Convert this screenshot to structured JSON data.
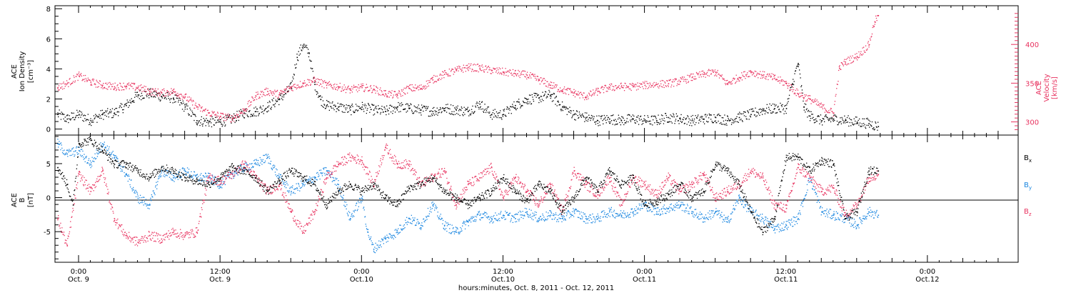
{
  "figure": {
    "xaxis_title": "hours:minutes, Oct. 8, 2011 - Oct. 12, 2011",
    "x_ticks": [
      {
        "hour": 24,
        "time": "0:00",
        "date": "Oct. 9"
      },
      {
        "hour": 36,
        "time": "12:00",
        "date": "Oct. 9"
      },
      {
        "hour": 48,
        "time": "0:00",
        "date": "Oct.10"
      },
      {
        "hour": 60,
        "time": "12:00",
        "date": "Oct.10"
      },
      {
        "hour": 72,
        "time": "0:00",
        "date": "Oct.11"
      },
      {
        "hour": 84,
        "time": "12:00",
        "date": "Oct.11"
      },
      {
        "hour": 96,
        "time": "0:00",
        "date": "Oct.12"
      }
    ],
    "x_range_hours_since_oct8": [
      22.0,
      103.7
    ]
  },
  "chart_data": [
    {
      "type": "scatter",
      "panel": "top",
      "ylabel_left": "ACE\nIon Density\n[cm⁻³]",
      "ylabel_right": "ACE\nVelocity\n[km/s]",
      "ylim_left": [
        -0.4,
        8.2
      ],
      "ylim_right": [
        283,
        450
      ],
      "left_ticks": [
        "0",
        "2",
        "4",
        "6",
        "8"
      ],
      "right_ticks": [
        "300",
        "350",
        "400"
      ],
      "colors": {
        "density": "#000000",
        "velocity": "#e8325f"
      },
      "series": [
        {
          "name": "Ion Density",
          "axis": "left",
          "x": [
            22.2,
            23.0,
            24.0,
            25.0,
            26.0,
            27.0,
            28.0,
            29.0,
            30.0,
            31.0,
            32.0,
            33.0,
            34.0,
            35.0,
            36.0,
            37.0,
            38.0,
            39.0,
            40.0,
            41.0,
            42.0,
            42.5,
            43.0,
            43.5,
            44.0,
            44.5,
            45.0,
            46.0,
            47.0,
            48.0,
            49.0,
            50.0,
            51.0,
            52.0,
            53.0,
            54.0,
            55.0,
            56.0,
            57.0,
            58.0,
            59.0,
            60.0,
            61.0,
            62.0,
            63.0,
            64.0,
            65.0,
            66.0,
            67.0,
            68.0,
            69.0,
            70.0,
            71.0,
            72.0,
            73.0,
            74.0,
            75.0,
            76.0,
            77.0,
            78.0,
            79.0,
            80.0,
            81.0,
            82.0,
            83.0,
            84.0,
            84.5,
            85.0,
            85.5,
            86.0,
            87.0,
            88.0,
            89.0,
            90.0,
            91.0,
            91.8
          ],
          "values": [
            1.0,
            0.7,
            1.0,
            0.6,
            1.0,
            1.1,
            1.6,
            2.3,
            2.4,
            2.2,
            2.1,
            1.5,
            0.6,
            0.5,
            0.5,
            0.7,
            1.1,
            1.2,
            1.5,
            2.0,
            2.8,
            4.8,
            5.6,
            5.1,
            3.0,
            2.0,
            1.6,
            1.5,
            1.3,
            1.5,
            1.3,
            1.2,
            1.5,
            1.4,
            1.3,
            1.2,
            1.4,
            1.3,
            1.2,
            1.7,
            1.0,
            1.0,
            1.6,
            2.0,
            2.1,
            2.3,
            1.5,
            1.0,
            0.8,
            0.6,
            0.7,
            0.6,
            0.7,
            0.6,
            0.6,
            0.8,
            0.7,
            0.6,
            0.7,
            0.8,
            0.6,
            0.8,
            1.0,
            1.3,
            1.4,
            1.4,
            3.0,
            4.4,
            1.5,
            0.9,
            0.6,
            0.7,
            0.6,
            0.5,
            0.4,
            0.2
          ]
        },
        {
          "name": "Velocity",
          "axis": "right",
          "x": [
            22.2,
            23.0,
            24.0,
            25.0,
            26.0,
            27.0,
            28.0,
            29.0,
            30.0,
            31.0,
            32.0,
            33.0,
            34.0,
            35.0,
            36.0,
            37.0,
            38.0,
            39.0,
            40.0,
            41.0,
            42.0,
            43.0,
            44.0,
            45.0,
            46.0,
            47.0,
            48.0,
            49.0,
            50.0,
            51.0,
            52.0,
            53.0,
            54.0,
            55.0,
            56.0,
            57.0,
            58.0,
            59.0,
            60.0,
            61.0,
            62.0,
            63.0,
            64.0,
            65.0,
            66.0,
            67.0,
            68.0,
            69.0,
            70.0,
            71.0,
            72.0,
            73.0,
            74.0,
            75.0,
            76.0,
            77.0,
            78.0,
            79.0,
            80.0,
            81.0,
            82.0,
            83.0,
            84.0,
            85.0,
            86.0,
            87.0,
            88.0,
            88.5,
            89.0,
            90.0,
            91.0,
            91.5,
            91.8
          ],
          "values": [
            345,
            350,
            360,
            352,
            348,
            346,
            347,
            345,
            340,
            338,
            340,
            333,
            320,
            312,
            308,
            305,
            315,
            334,
            340,
            336,
            345,
            350,
            354,
            348,
            346,
            342,
            345,
            343,
            337,
            335,
            344,
            344,
            355,
            362,
            367,
            371,
            370,
            367,
            365,
            363,
            361,
            355,
            348,
            342,
            338,
            333,
            340,
            345,
            346,
            346,
            348,
            349,
            350,
            353,
            358,
            362,
            365,
            350,
            358,
            365,
            361,
            357,
            350,
            337,
            330,
            320,
            312,
            370,
            378,
            385,
            400,
            430,
            438
          ]
        }
      ]
    },
    {
      "type": "scatter",
      "panel": "bottom",
      "ylabel_left": "ACE\nB\n[nT]",
      "ylim": [
        -9.5,
        9.2
      ],
      "left_ticks": [
        "-5",
        "0",
        "5"
      ],
      "zero_line": true,
      "colors": {
        "Bx": "#000000",
        "By": "#1a86e0",
        "Bz": "#e8325f"
      },
      "series": [
        {
          "name": "Bx",
          "x": [
            22.2,
            23.0,
            23.5,
            24.0,
            25.0,
            26.0,
            27.0,
            28.0,
            29.0,
            30.0,
            31.0,
            32.0,
            33.0,
            34.0,
            35.0,
            36.0,
            37.0,
            38.0,
            39.0,
            40.0,
            41.0,
            42.0,
            43.0,
            44.0,
            45.0,
            46.0,
            47.0,
            48.0,
            49.0,
            50.0,
            51.0,
            52.0,
            53.0,
            54.0,
            55.0,
            56.0,
            57.0,
            58.0,
            59.0,
            60.0,
            61.0,
            62.0,
            63.0,
            64.0,
            65.0,
            66.0,
            67.0,
            68.0,
            69.0,
            70.0,
            71.0,
            72.0,
            73.0,
            74.0,
            75.0,
            76.0,
            77.0,
            78.0,
            79.0,
            80.0,
            81.0,
            82.0,
            83.0,
            84.0,
            85.0,
            86.0,
            87.0,
            88.0,
            89.0,
            90.0,
            91.0,
            91.8
          ],
          "values": [
            4.5,
            2.0,
            -1.0,
            8.0,
            8.5,
            7.0,
            5.0,
            5.0,
            4.0,
            3.0,
            4.5,
            4.0,
            3.0,
            2.5,
            2.0,
            3.0,
            4.5,
            4.0,
            3.0,
            1.0,
            2.5,
            4.0,
            3.0,
            2.0,
            -1.0,
            1.0,
            2.0,
            1.0,
            2.0,
            0.0,
            -1.0,
            1.5,
            2.0,
            3.0,
            1.0,
            0.0,
            -1.0,
            0.0,
            1.0,
            3.0,
            1.0,
            -0.5,
            2.0,
            1.0,
            -2.0,
            0.0,
            3.0,
            1.0,
            4.0,
            2.0,
            3.0,
            -1.0,
            -0.5,
            0.5,
            2.0,
            0.0,
            1.0,
            5.0,
            4.0,
            2.0,
            -2.0,
            -5.0,
            -3.0,
            6.0,
            6.0,
            4.0,
            5.5,
            5.0,
            -3.0,
            -2.0,
            4.0,
            4.0
          ]
        },
        {
          "name": "By",
          "x": [
            22.2,
            23.0,
            24.0,
            25.0,
            26.0,
            27.0,
            28.0,
            29.0,
            30.0,
            31.0,
            32.0,
            33.0,
            34.0,
            35.0,
            36.0,
            37.0,
            38.0,
            39.0,
            40.0,
            41.0,
            42.0,
            43.0,
            44.0,
            45.0,
            46.0,
            47.0,
            48.0,
            48.5,
            49.0,
            50.0,
            51.0,
            52.0,
            53.0,
            54.0,
            55.0,
            56.0,
            57.0,
            58.0,
            59.0,
            60.0,
            61.0,
            62.0,
            63.0,
            64.0,
            65.0,
            66.0,
            67.0,
            68.0,
            69.0,
            70.0,
            71.0,
            72.0,
            73.0,
            74.0,
            75.0,
            76.0,
            77.0,
            78.0,
            79.0,
            80.0,
            81.0,
            82.0,
            83.0,
            84.0,
            85.0,
            86.0,
            87.0,
            88.0,
            89.0,
            90.0,
            91.0,
            91.8
          ],
          "values": [
            8.0,
            6.5,
            7.0,
            5.0,
            8.0,
            6.0,
            3.5,
            0.0,
            -1.0,
            4.0,
            3.0,
            4.0,
            3.0,
            3.0,
            2.0,
            3.5,
            4.5,
            5.0,
            6.0,
            3.0,
            1.0,
            2.0,
            3.0,
            4.0,
            2.0,
            -3.0,
            0.0,
            -5.0,
            -7.5,
            -6.0,
            -5.0,
            -3.0,
            -4.0,
            -1.0,
            -4.0,
            -5.0,
            -3.5,
            -2.5,
            -3.0,
            -2.5,
            -3.0,
            -2.0,
            -3.0,
            -2.5,
            -3.0,
            -2.0,
            -3.0,
            -3.0,
            -2.0,
            -2.5,
            -2.0,
            -1.0,
            -2.0,
            -1.5,
            -1.0,
            -2.0,
            -3.0,
            -2.0,
            -3.5,
            0.0,
            -2.0,
            -3.0,
            -4.5,
            -4.0,
            -3.0,
            3.0,
            -2.0,
            -2.5,
            -3.0,
            -4.0,
            -2.0,
            -2.5
          ]
        },
        {
          "name": "Bz",
          "x": [
            22.2,
            23.0,
            24.0,
            25.0,
            26.0,
            27.0,
            28.0,
            29.0,
            30.0,
            31.0,
            32.0,
            33.0,
            34.0,
            35.0,
            36.0,
            37.0,
            38.0,
            39.0,
            40.0,
            41.0,
            42.0,
            43.0,
            44.0,
            45.0,
            46.0,
            47.0,
            48.0,
            49.0,
            50.0,
            51.0,
            52.0,
            53.0,
            54.0,
            55.0,
            56.0,
            57.0,
            58.0,
            59.0,
            60.0,
            61.0,
            62.0,
            63.0,
            64.0,
            65.0,
            66.0,
            67.0,
            68.0,
            69.0,
            70.0,
            71.0,
            72.0,
            73.0,
            74.0,
            75.0,
            76.0,
            77.0,
            78.0,
            79.0,
            80.0,
            81.0,
            82.0,
            83.0,
            84.0,
            85.0,
            86.0,
            87.0,
            88.0,
            89.0,
            90.0,
            91.0,
            91.8
          ],
          "values": [
            -3.0,
            -7.0,
            3.5,
            1.0,
            4.0,
            -3.0,
            -5.5,
            -6.5,
            -5.5,
            -6.0,
            -5.0,
            -5.5,
            -5.0,
            3.0,
            2.5,
            3.5,
            5.0,
            3.0,
            1.0,
            2.0,
            -2.0,
            -5.0,
            -2.0,
            3.0,
            5.0,
            6.0,
            5.5,
            2.0,
            7.5,
            5.0,
            5.0,
            2.0,
            3.0,
            4.0,
            -1.0,
            2.0,
            3.0,
            4.5,
            0.0,
            3.0,
            1.0,
            -1.0,
            2.0,
            -2.0,
            4.0,
            2.0,
            0.5,
            3.0,
            -1.0,
            3.0,
            2.0,
            0.5,
            3.0,
            1.0,
            2.0,
            3.5,
            0.0,
            1.0,
            2.0,
            4.0,
            3.0,
            -1.0,
            -1.5,
            4.5,
            3.0,
            1.0,
            1.5,
            -2.5,
            -1.0,
            3.0,
            3.5
          ]
        }
      ],
      "legend": [
        "Bx",
        "By",
        "Bz"
      ]
    }
  ]
}
